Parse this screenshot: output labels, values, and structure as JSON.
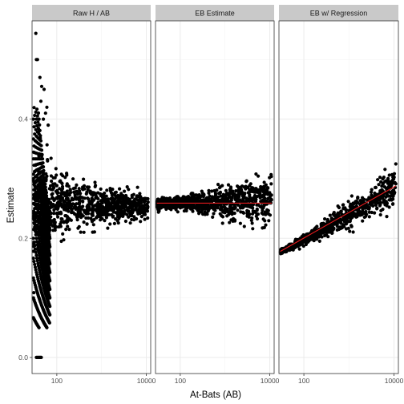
{
  "chart_data": {
    "type": "scatter",
    "xlabel": "At-Bats (AB)",
    "ylabel": "Estimate",
    "x_scale": "log10",
    "xlim": [
      28,
      12500
    ],
    "ylim": [
      -0.027,
      0.565
    ],
    "x_ticks": [
      {
        "value": 100,
        "label": "100"
      },
      {
        "value": 10000,
        "label": "10000"
      }
    ],
    "y_ticks": [
      {
        "value": 0.0,
        "label": "0.0"
      },
      {
        "value": 0.2,
        "label": "0.2"
      },
      {
        "value": 0.4,
        "label": "0.4"
      }
    ],
    "grid": true,
    "point_color": "#000000",
    "fit_line_color": "#e41a1c",
    "facets": [
      {
        "title": "Raw H / AB",
        "fit_line": null,
        "points": [
          {
            "x": 34,
            "y": 0.544
          },
          {
            "x": 35,
            "y": 0.5
          },
          {
            "x": 37,
            "y": 0.5
          },
          {
            "x": 42,
            "y": 0.47
          },
          {
            "x": 46,
            "y": 0.455
          },
          {
            "x": 52,
            "y": 0.45
          },
          {
            "x": 44,
            "y": 0.43
          },
          {
            "x": 60,
            "y": 0.42
          },
          {
            "x": 56,
            "y": 0.41
          },
          {
            "x": 50,
            "y": 0.4
          },
          {
            "x": 64,
            "y": 0.39
          },
          {
            "x": 40,
            "y": 0.38
          },
          {
            "x": 35,
            "y": 0.0
          },
          {
            "x": 37,
            "y": 0.0
          },
          {
            "x": 39,
            "y": 0.0
          },
          {
            "x": 41,
            "y": 0.0
          },
          {
            "x": 43,
            "y": 0.0
          },
          {
            "x": 45,
            "y": 0.0
          }
        ],
        "density": {
          "low_ab_fan": true,
          "center_at_1000": 0.255,
          "spread_at_1000": 0.03
        }
      },
      {
        "title": "EB Estimate",
        "fit_line": {
          "y_start": 0.259,
          "y_end": 0.259
        },
        "density": {
          "center_low": 0.258,
          "center_high": 0.262,
          "spread_low": 0.006,
          "spread_high": 0.03
        }
      },
      {
        "title": "EB w/ Regression",
        "fit_line": {
          "y_start": 0.178,
          "y_end": 0.288
        },
        "density": {
          "center_low": 0.178,
          "center_high": 0.288,
          "spread_low": 0.003,
          "spread_high": 0.025
        }
      }
    ]
  }
}
